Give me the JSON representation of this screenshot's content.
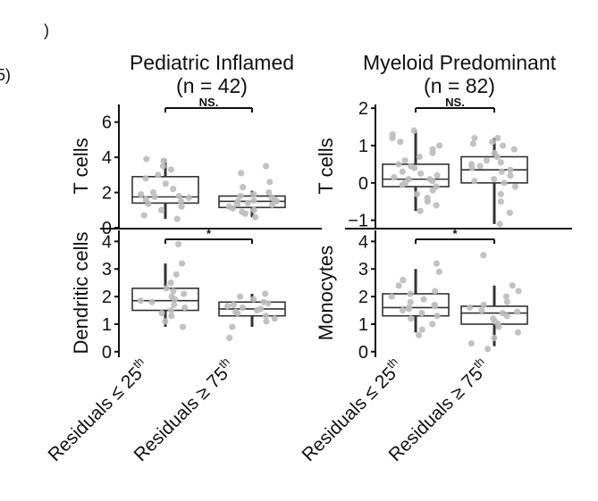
{
  "figure": {
    "left_fragment_top": ")",
    "left_fragment_label": "5)"
  },
  "chart_data": [
    {
      "type": "boxplot",
      "title": "Pediatric Inflamed",
      "subtitle": "(n = 42)",
      "ylabel": "T cells",
      "ylim": [
        0,
        7
      ],
      "yticks": [
        0,
        2,
        4,
        6
      ],
      "categories": [
        "Residuals ≤ 25th",
        "Residuals ≥ 75th"
      ],
      "significance": "NS.",
      "boxes": [
        {
          "q1": 1.4,
          "median": 1.75,
          "q3": 2.9,
          "whisker_low": 0.5,
          "whisker_high": 3.9,
          "points": [
            0.5,
            0.7,
            1.0,
            1.2,
            1.35,
            1.5,
            1.6,
            1.7,
            1.75,
            1.8,
            1.9,
            2.0,
            2.2,
            2.5,
            2.8,
            3.0,
            3.3,
            3.5,
            3.8,
            3.9
          ]
        },
        {
          "q1": 1.15,
          "median": 1.5,
          "q3": 1.8,
          "whisker_low": 0.6,
          "whisker_high": 2.1,
          "points": [
            0.6,
            0.8,
            0.9,
            1.0,
            1.1,
            1.2,
            1.3,
            1.35,
            1.4,
            1.5,
            1.5,
            1.55,
            1.6,
            1.7,
            1.8,
            1.9,
            2.0,
            2.3,
            2.6,
            3.1,
            3.5
          ]
        }
      ]
    },
    {
      "type": "boxplot",
      "title": "Myeloid Predominant",
      "subtitle": "(n = 82)",
      "ylabel": "T cells",
      "ylim": [
        -1.2,
        2.1
      ],
      "yticks": [
        -1,
        0,
        1,
        2
      ],
      "ytick_labels": [
        "−1",
        "0",
        "1",
        "2"
      ],
      "categories": [
        "Residuals ≤ 25th",
        "Residuals ≥ 75th"
      ],
      "significance": "NS.",
      "boxes": [
        {
          "q1": -0.1,
          "median": 0.1,
          "q3": 0.5,
          "whisker_low": -0.75,
          "whisker_high": 1.4,
          "points": [
            -0.75,
            -0.6,
            -0.5,
            -0.4,
            -0.3,
            -0.2,
            -0.1,
            -0.05,
            0.0,
            0.05,
            0.1,
            0.1,
            0.15,
            0.2,
            0.25,
            0.3,
            0.4,
            0.45,
            0.5,
            0.6,
            0.7,
            0.8,
            0.9,
            1.0,
            1.1,
            1.2,
            1.3,
            1.4
          ]
        },
        {
          "q1": 0.0,
          "median": 0.35,
          "q3": 0.7,
          "whisker_low": -1.1,
          "whisker_high": 1.2,
          "points": [
            -1.1,
            -0.8,
            -0.5,
            -0.3,
            -0.1,
            0.0,
            0.05,
            0.1,
            0.2,
            0.3,
            0.35,
            0.4,
            0.45,
            0.5,
            0.55,
            0.6,
            0.7,
            0.8,
            0.9,
            1.0,
            1.05,
            1.1,
            1.2,
            1.2
          ]
        }
      ]
    },
    {
      "type": "boxplot",
      "ylabel": "Dendritic cells",
      "ylim": [
        -0.2,
        4.4
      ],
      "yticks": [
        0,
        1,
        2,
        3,
        4
      ],
      "categories": [
        "Residuals ≤ 25th",
        "Residuals ≥ 75th"
      ],
      "significance": "*",
      "boxes": [
        {
          "q1": 1.5,
          "median": 1.85,
          "q3": 2.3,
          "whisker_low": 0.9,
          "whisker_high": 3.2,
          "points": [
            0.9,
            1.1,
            1.3,
            1.4,
            1.5,
            1.6,
            1.7,
            1.8,
            1.85,
            1.9,
            2.0,
            2.1,
            2.2,
            2.3,
            2.5,
            2.8,
            3.2,
            3.9
          ]
        },
        {
          "q1": 1.3,
          "median": 1.55,
          "q3": 1.8,
          "whisker_low": 0.9,
          "whisker_high": 2.1,
          "points": [
            0.5,
            0.9,
            1.1,
            1.2,
            1.3,
            1.4,
            1.45,
            1.5,
            1.55,
            1.6,
            1.65,
            1.7,
            1.75,
            1.8,
            1.9,
            2.0,
            2.1
          ]
        }
      ]
    },
    {
      "type": "boxplot",
      "ylabel": "Monocytes",
      "ylim": [
        -0.2,
        4.4
      ],
      "yticks": [
        0,
        1,
        2,
        3,
        4
      ],
      "categories": [
        "Residuals ≤ 25th",
        "Residuals ≥ 75th"
      ],
      "significance": "*",
      "boxes": [
        {
          "q1": 1.3,
          "median": 1.6,
          "q3": 2.1,
          "whisker_low": 0.7,
          "whisker_high": 3.0,
          "points": [
            0.6,
            0.8,
            1.0,
            1.2,
            1.3,
            1.4,
            1.5,
            1.55,
            1.6,
            1.65,
            1.7,
            1.8,
            1.9,
            2.0,
            2.1,
            2.2,
            2.4,
            2.6,
            2.9,
            3.2
          ]
        },
        {
          "q1": 1.0,
          "median": 1.4,
          "q3": 1.65,
          "whisker_low": 0.2,
          "whisker_high": 2.4,
          "points": [
            0.1,
            0.3,
            0.5,
            0.7,
            0.9,
            1.0,
            1.1,
            1.2,
            1.3,
            1.4,
            1.45,
            1.5,
            1.6,
            1.7,
            1.8,
            2.0,
            2.2,
            2.4,
            3.5
          ]
        }
      ]
    }
  ]
}
